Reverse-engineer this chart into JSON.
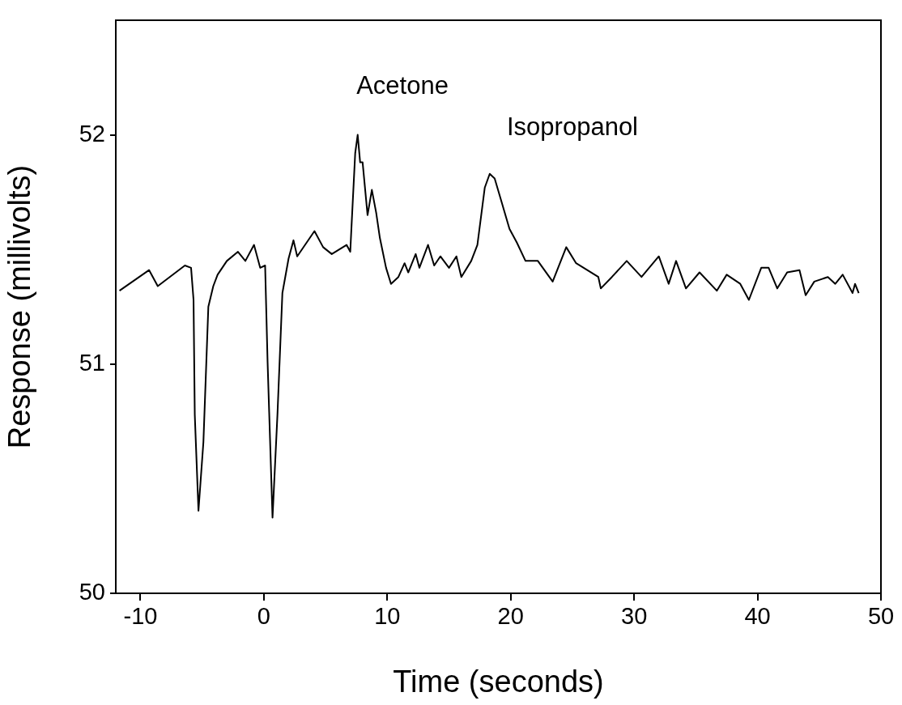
{
  "chart_data": {
    "type": "line",
    "xlabel": "Time (seconds)",
    "ylabel": "Response (millivolts)",
    "xlim": [
      -12,
      50
    ],
    "xticks": [
      -10,
      0,
      10,
      20,
      30,
      40,
      50
    ],
    "ylim": [
      50,
      52.5
    ],
    "yticks": [
      50,
      51,
      52
    ],
    "marker": "none",
    "line_style": "solid",
    "legend": false,
    "annotations": [
      "Acetone",
      "Isopropanol"
    ],
    "series": [
      {
        "color": "#000000",
        "x": [
          -11.7,
          -9.3,
          -8.6,
          -6.4,
          -5.9,
          -5.7,
          -5.6,
          -5.3,
          -4.9,
          -4.5,
          -4.1,
          -3.75,
          -3.0,
          -2.1,
          -1.5,
          -0.8,
          -0.3,
          0.1,
          0.3,
          0.7,
          1.1,
          1.5,
          2.0,
          2.4,
          2.7,
          4.1,
          4.8,
          5.5,
          6.7,
          7.0,
          7.1,
          7.4,
          7.6,
          7.8,
          8.0,
          8.4,
          8.75,
          9.1,
          9.4,
          9.9,
          10.3,
          10.9,
          11.4,
          11.7,
          12.3,
          12.6,
          13.3,
          13.8,
          14.3,
          15.0,
          15.6,
          16.0,
          16.8,
          17.3,
          17.9,
          18.3,
          18.7,
          19.3,
          19.9,
          20.5,
          21.2,
          22.2,
          23.4,
          24.5,
          25.3,
          27.1,
          27.3,
          28.2,
          29.4,
          30.6,
          32.0,
          32.8,
          33.4,
          34.2,
          35.3,
          36.7,
          37.5,
          38.6,
          39.3,
          40.3,
          40.9,
          41.6,
          42.4,
          43.4,
          43.9,
          44.6,
          45.7,
          46.3,
          46.9,
          47.7,
          47.9,
          48.2
        ],
        "values": [
          51.32,
          51.41,
          51.34,
          51.43,
          51.42,
          51.28,
          50.78,
          50.36,
          50.66,
          51.25,
          51.34,
          51.39,
          51.45,
          51.49,
          51.45,
          51.52,
          51.42,
          51.43,
          51.01,
          50.33,
          50.78,
          51.31,
          51.46,
          51.54,
          51.47,
          51.58,
          51.51,
          51.48,
          51.52,
          51.49,
          51.6,
          51.92,
          52.0,
          51.88,
          51.88,
          51.65,
          51.76,
          51.66,
          51.55,
          51.42,
          51.35,
          51.38,
          51.44,
          51.4,
          51.48,
          51.42,
          51.52,
          51.43,
          51.47,
          51.42,
          51.47,
          51.38,
          51.45,
          51.52,
          51.77,
          51.83,
          51.81,
          51.7,
          51.59,
          51.53,
          51.45,
          51.45,
          51.36,
          51.51,
          51.44,
          51.38,
          51.33,
          51.38,
          51.45,
          51.38,
          51.47,
          51.35,
          51.45,
          51.33,
          51.4,
          51.32,
          51.39,
          51.35,
          51.28,
          51.42,
          51.42,
          51.33,
          51.4,
          51.41,
          51.3,
          51.36,
          51.38,
          51.35,
          51.39,
          51.31,
          51.35,
          51.31
        ]
      }
    ]
  }
}
